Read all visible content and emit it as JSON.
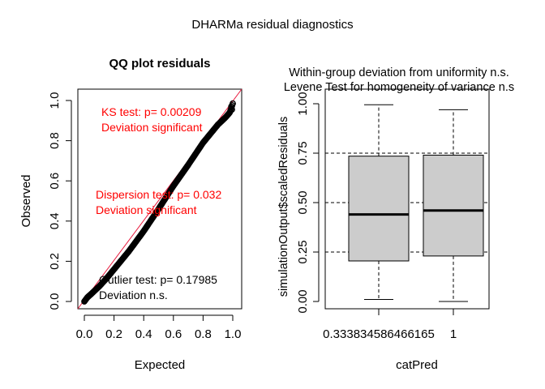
{
  "main_title": "DHARMa residual diagnostics",
  "chart_data": [
    {
      "type": "scatter",
      "title": "QQ plot residuals",
      "xlabel": "Expected",
      "ylabel": "Observed",
      "xlim": [
        0,
        1
      ],
      "ylim": [
        0,
        1
      ],
      "xticks": [
        "0.0",
        "0.2",
        "0.4",
        "0.6",
        "0.8",
        "1.0"
      ],
      "yticks": [
        "0.0",
        "0.2",
        "0.4",
        "0.6",
        "0.8",
        "1.0"
      ],
      "reference_line": {
        "from": [
          0,
          0
        ],
        "to": [
          1,
          1
        ],
        "color": "#e8183c"
      },
      "qq_curve": {
        "x": [
          0.0,
          0.02,
          0.05,
          0.1,
          0.15,
          0.2,
          0.3,
          0.4,
          0.5,
          0.6,
          0.7,
          0.8,
          0.9,
          0.95,
          0.98,
          1.0
        ],
        "y": [
          0.0,
          0.02,
          0.04,
          0.075,
          0.115,
          0.16,
          0.25,
          0.35,
          0.46,
          0.575,
          0.68,
          0.79,
          0.88,
          0.915,
          0.94,
          0.985
        ]
      },
      "annotations": [
        {
          "lines": [
            "KS test: p= 0.00209",
            "Deviation  significant"
          ],
          "color": "#ff0000"
        },
        {
          "lines": [
            "Dispersion test: p= 0.032",
            "Deviation  significant"
          ],
          "color": "#ff0000"
        },
        {
          "lines": [
            "Outlier test: p= 0.17985",
            "Deviation  n.s."
          ],
          "color": "#000000"
        }
      ]
    },
    {
      "type": "boxplot",
      "title_lines": [
        "Within-group deviation from uniformity n.s.",
        "Levene Test for homogeneity of variance n.s"
      ],
      "xlabel": "catPred",
      "ylabel": "simulationOutput$scaledResiduals",
      "ylim": [
        0,
        1
      ],
      "yticks": [
        "0.00",
        "0.25",
        "0.50",
        "0.75",
        "1.00"
      ],
      "categories": [
        "0.333834586466165",
        "1"
      ],
      "boxes": [
        {
          "whisker_low": 0.01,
          "q1": 0.205,
          "median": 0.44,
          "q3": 0.735,
          "whisker_high": 0.995
        },
        {
          "whisker_low": 0.0,
          "q1": 0.23,
          "median": 0.46,
          "q3": 0.74,
          "whisker_high": 0.97
        }
      ],
      "reference_lines": [
        0.25,
        0.5,
        0.75
      ],
      "box_fill": "#cccccc"
    }
  ]
}
